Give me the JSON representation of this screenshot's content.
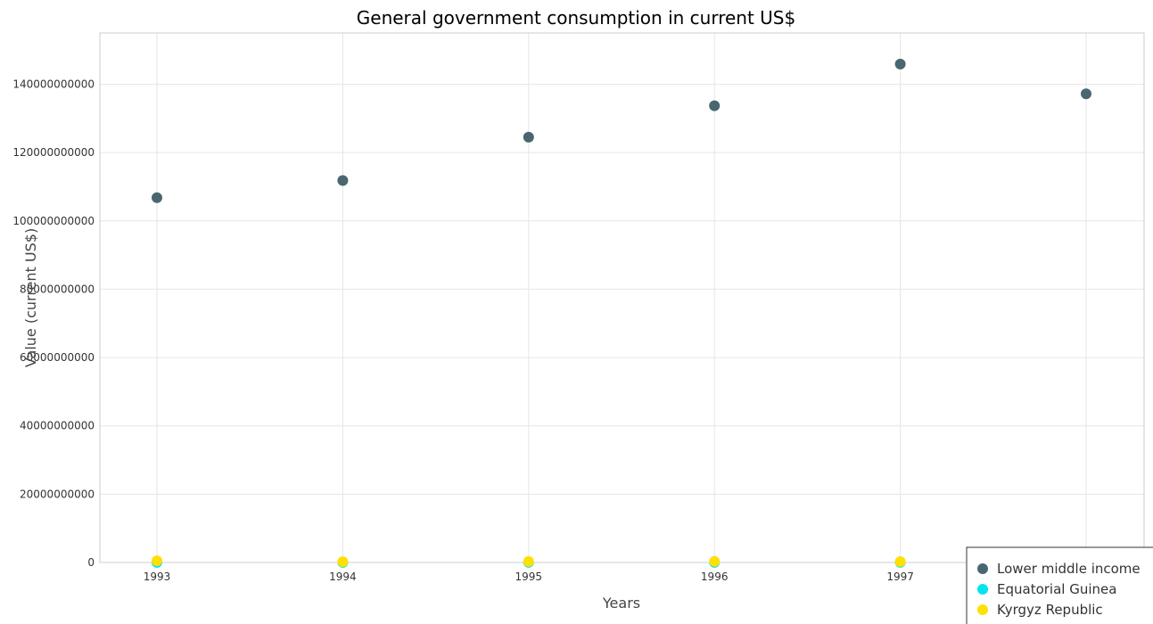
{
  "chart_data": {
    "type": "scatter",
    "title": "General government consumption in current US$",
    "xlabel": "Years",
    "ylabel": "Value (current US$)",
    "x": [
      "1993",
      "1994",
      "1995",
      "1996",
      "1997",
      "1998"
    ],
    "ylim": [
      0,
      155000000000
    ],
    "yticks": [
      0,
      20000000000,
      40000000000,
      60000000000,
      80000000000,
      100000000000,
      120000000000,
      140000000000
    ],
    "ytick_labels": [
      "0",
      "20000000000",
      "40000000000",
      "60000000000",
      "80000000000",
      "100000000000",
      "120000000000",
      "140000000000"
    ],
    "grid": true,
    "legend_position": "bottom-right",
    "series": [
      {
        "name": "Lower middle income",
        "color": "#4a6670",
        "values": [
          106800000000,
          111800000000,
          124500000000,
          133700000000,
          145900000000,
          137200000000
        ]
      },
      {
        "name": "Equatorial Guinea",
        "color": "#00e5ee",
        "values": [
          20000000,
          15000000,
          18000000,
          22000000,
          28000000,
          30000000
        ]
      },
      {
        "name": "Kyrgyz Republic",
        "color": "#ffe000",
        "values": [
          500000000,
          240000000,
          280000000,
          330000000,
          250000000,
          240000000
        ]
      }
    ]
  }
}
